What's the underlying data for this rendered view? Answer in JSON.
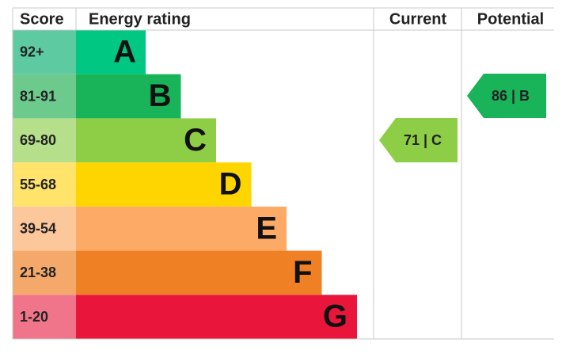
{
  "header": {
    "score": "Score",
    "energy_rating": "Energy rating",
    "current": "Current",
    "potential": "Potential"
  },
  "bands": [
    {
      "score": "92+",
      "letter": "A",
      "color": "#00c781",
      "score_color": "#5dcaa2"
    },
    {
      "score": "81-91",
      "letter": "B",
      "color": "#19b459",
      "score_color": "#6ccb8c"
    },
    {
      "score": "69-80",
      "letter": "C",
      "color": "#8dce46",
      "score_color": "#b6df8b"
    },
    {
      "score": "55-68",
      "letter": "D",
      "color": "#ffd500",
      "score_color": "#ffe36b"
    },
    {
      "score": "39-54",
      "letter": "E",
      "color": "#fcaa65",
      "score_color": "#fdc79c"
    },
    {
      "score": "21-38",
      "letter": "F",
      "color": "#ef8023",
      "score_color": "#f4a96b"
    },
    {
      "score": "1-20",
      "letter": "G",
      "color": "#e9153b",
      "score_color": "#f0758b"
    }
  ],
  "current": {
    "label": "71 | C",
    "color": "#8dce46"
  },
  "potential": {
    "label": "86 | B",
    "color": "#19b459"
  }
}
